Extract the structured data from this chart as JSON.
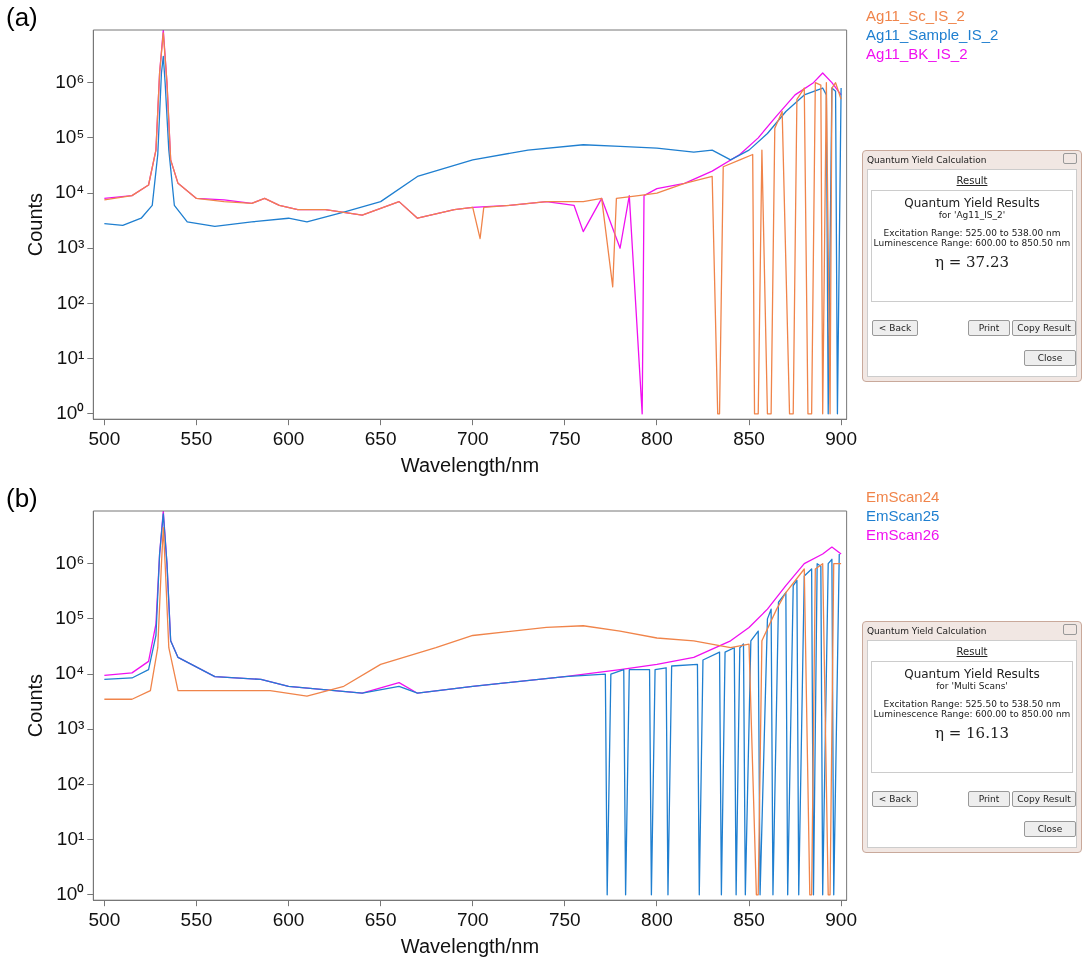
{
  "chart_data": [
    {
      "type": "line",
      "title": "(a)",
      "xlabel": "Wavelength/nm",
      "ylabel": "Counts",
      "log": "y",
      "grid": false,
      "legend": "right",
      "marker": "none",
      "line_style": "solid",
      "xlim": [
        494,
        903
      ],
      "xticks": [
        500,
        550,
        600,
        650,
        700,
        750,
        800,
        850,
        900
      ],
      "ylim": [
        0.8,
        9000000
      ],
      "yticks": [
        {
          "value": 1,
          "label": "10⁰"
        },
        {
          "value": 10,
          "label": "10¹"
        },
        {
          "value": 100,
          "label": "10²"
        },
        {
          "value": 1000,
          "label": "10³"
        },
        {
          "value": 10000,
          "label": "10⁴"
        },
        {
          "value": 100000,
          "label": "10⁵"
        },
        {
          "value": 1000000,
          "label": "10⁶"
        }
      ],
      "annotations": [
        "Quantum Yield Calculation",
        "Result",
        "Quantum Yield Results",
        "for 'Ag11_IS_2'",
        "Excitation Range: 525.00 to 538.00 nm",
        "Luminescence Range: 600.00 to 850.50 nm",
        "η = 37.23",
        "< Back",
        "Print",
        "Copy Result",
        "Close"
      ],
      "series": [
        {
          "name": "Ag11_Sc_IS_2",
          "color": "#f0844a",
          "x": [
            500,
            515,
            524,
            528,
            530,
            532,
            534,
            536,
            540,
            550,
            565,
            580,
            587,
            595,
            605,
            620,
            640,
            660,
            670,
            690,
            700,
            704,
            706,
            720,
            740,
            760,
            770,
            776,
            778,
            790,
            800,
            815,
            830,
            833,
            834,
            836,
            845,
            852,
            853,
            855,
            857,
            860,
            862,
            864,
            868,
            872,
            874,
            876,
            880,
            882,
            884,
            886,
            889,
            890,
            892,
            894,
            895,
            897,
            900
          ],
          "values": [
            7500,
            9000,
            14000,
            60000,
            1500000,
            8000000,
            1000000,
            40000,
            15000,
            8000,
            7000,
            6500,
            8000,
            6000,
            5000,
            5000,
            4000,
            7000,
            3500,
            5000,
            5500,
            1500,
            5500,
            6000,
            7000,
            7000,
            8000,
            200,
            8000,
            9000,
            10000,
            15000,
            20000,
            1,
            1,
            30000,
            40000,
            50000,
            1,
            1,
            60000,
            1,
            1,
            150000,
            300000,
            1,
            1,
            500000,
            800000,
            1,
            1,
            1000000,
            900000,
            1,
            1000000,
            1,
            800000,
            1000000,
            500000
          ]
        },
        {
          "name": "Ag11_Sample_IS_2",
          "color": "#1f7fd0",
          "x": [
            500,
            510,
            520,
            526,
            529,
            531,
            532,
            533,
            535,
            538,
            545,
            560,
            580,
            600,
            610,
            630,
            650,
            670,
            700,
            730,
            760,
            780,
            800,
            820,
            830,
            840,
            850,
            860,
            870,
            880,
            890,
            892,
            893,
            895,
            897,
            898,
            900
          ],
          "values": [
            2800,
            2600,
            3500,
            6000,
            50000,
            1500000,
            3000000,
            1000000,
            60000,
            6000,
            3000,
            2500,
            3000,
            3500,
            3000,
            4500,
            7000,
            20000,
            40000,
            60000,
            75000,
            70000,
            65000,
            55000,
            60000,
            40000,
            60000,
            120000,
            300000,
            600000,
            800000,
            600000,
            1,
            800000,
            700000,
            1,
            800000
          ]
        },
        {
          "name": "Ag11_BK_IS_2",
          "color": "#f010f0",
          "x": [
            500,
            515,
            524,
            528,
            530,
            532,
            534,
            536,
            540,
            550,
            565,
            580,
            587,
            595,
            605,
            620,
            640,
            660,
            670,
            690,
            700,
            720,
            740,
            755,
            760,
            770,
            780,
            785,
            792,
            793,
            800,
            815,
            830,
            845,
            855,
            865,
            875,
            885,
            890,
            895,
            900
          ],
          "values": [
            8000,
            9000,
            14000,
            60000,
            1500000,
            9000000,
            1000000,
            40000,
            15000,
            8000,
            7500,
            6500,
            8000,
            6000,
            5000,
            5000,
            4000,
            7000,
            3500,
            5000,
            5500,
            6000,
            7000,
            6000,
            2000,
            8000,
            1000,
            9000,
            1,
            9000,
            12000,
            15000,
            25000,
            50000,
            100000,
            250000,
            600000,
            1000000,
            1500000,
            1000000,
            600000
          ]
        }
      ]
    },
    {
      "type": "line",
      "title": "(b)",
      "xlabel": "Wavelength/nm",
      "ylabel": "Counts",
      "log": "y",
      "grid": false,
      "legend": "right",
      "marker": "none",
      "line_style": "solid",
      "xlim": [
        494,
        903
      ],
      "xticks": [
        500,
        550,
        600,
        650,
        700,
        750,
        800,
        850,
        900
      ],
      "ylim": [
        0.8,
        9000000
      ],
      "yticks": [
        {
          "value": 1,
          "label": "10⁰"
        },
        {
          "value": 10,
          "label": "10¹"
        },
        {
          "value": 100,
          "label": "10²"
        },
        {
          "value": 1000,
          "label": "10³"
        },
        {
          "value": 10000,
          "label": "10⁴"
        },
        {
          "value": 100000,
          "label": "10⁵"
        },
        {
          "value": 1000000,
          "label": "10⁶"
        }
      ],
      "annotations": [
        "Quantum Yield Calculation",
        "Result",
        "Quantum Yield Results",
        "for 'Multi Scans'",
        "Excitation Range: 525.50 to 538.50 nm",
        "Luminescence Range: 600.00 to 850.00 nm",
        "η = 16.13",
        "< Back",
        "Print",
        "Copy Result",
        "Close"
      ],
      "series": [
        {
          "name": "EmScan24",
          "color": "#f0844a",
          "x": [
            500,
            515,
            525,
            529,
            531,
            532,
            533,
            535,
            540,
            560,
            590,
            610,
            630,
            650,
            680,
            700,
            740,
            760,
            780,
            800,
            820,
            840,
            850,
            854,
            855,
            857,
            865,
            870,
            880,
            883,
            884,
            886,
            890,
            893,
            894,
            896,
            900
          ],
          "values": [
            3500,
            3500,
            5000,
            30000,
            1000000,
            4500000,
            1000000,
            30000,
            5000,
            5000,
            5000,
            4000,
            6000,
            15000,
            30000,
            50000,
            70000,
            75000,
            60000,
            45000,
            40000,
            30000,
            35000,
            1,
            1,
            40000,
            150000,
            300000,
            800000,
            1,
            1,
            800000,
            1000000,
            1,
            1,
            1000000,
            1000000
          ]
        },
        {
          "name": "EmScan25",
          "color": "#1f7fd0",
          "x": [
            500,
            515,
            524,
            528,
            530,
            532,
            534,
            536,
            540,
            560,
            585,
            600,
            625,
            640,
            660,
            670,
            700,
            750,
            772,
            773,
            775,
            782,
            783,
            785,
            796,
            797,
            799,
            805,
            806,
            808,
            822,
            823,
            825,
            834,
            835,
            837,
            842,
            843,
            845,
            847,
            848,
            851,
            855,
            856,
            860,
            862,
            863,
            866,
            870,
            871,
            874,
            876,
            877,
            880,
            884,
            885,
            887,
            889,
            890,
            893,
            895,
            896,
            899
          ],
          "values": [
            8000,
            8500,
            12000,
            50000,
            1500000,
            8000000,
            1000000,
            40000,
            20000,
            9000,
            8000,
            6000,
            5000,
            4500,
            6000,
            4500,
            6000,
            9000,
            10000,
            1,
            10000,
            12000,
            1,
            12000,
            12000,
            1,
            12000,
            13000,
            1,
            14000,
            15000,
            1,
            18000,
            25000,
            1,
            25000,
            30000,
            1,
            30000,
            35000,
            1,
            40000,
            60000,
            1,
            100000,
            150000,
            1,
            200000,
            300000,
            1,
            400000,
            500000,
            1,
            600000,
            800000,
            1,
            1000000,
            900000,
            1,
            1000000,
            1200000,
            1,
            1500000
          ]
        },
        {
          "name": "EmScan26",
          "color": "#f010f0",
          "x": [
            500,
            515,
            524,
            528,
            530,
            532,
            534,
            536,
            540,
            560,
            585,
            600,
            625,
            640,
            660,
            670,
            700,
            750,
            780,
            800,
            820,
            840,
            850,
            860,
            870,
            880,
            890,
            895,
            900
          ],
          "values": [
            9500,
            10500,
            17000,
            80000,
            1500000,
            9000000,
            1000000,
            40000,
            20000,
            9000,
            8000,
            6000,
            5000,
            4500,
            7000,
            4500,
            6000,
            9000,
            12000,
            15000,
            20000,
            40000,
            70000,
            150000,
            400000,
            1000000,
            1500000,
            2000000,
            1500000
          ]
        }
      ]
    }
  ]
}
